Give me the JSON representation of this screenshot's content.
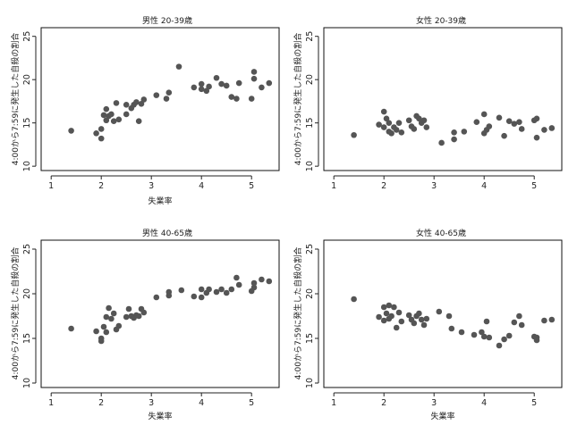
{
  "chart_data": [
    {
      "type": "scatter",
      "title": "男性 20-39歳",
      "xlabel": "失業率",
      "ylabel": "4:00から7:59に発生した自殺の割合",
      "xlim": [
        0.8,
        5.55
      ],
      "ylim": [
        9.5,
        26
      ],
      "xticks": [
        1,
        2,
        3,
        4,
        5
      ],
      "yticks": [
        10,
        15,
        20,
        25
      ],
      "grid": false,
      "color": "#555555",
      "points": [
        [
          1.4,
          14.1
        ],
        [
          1.9,
          13.8
        ],
        [
          2.0,
          13.2
        ],
        [
          2.0,
          14.3
        ],
        [
          2.05,
          15.9
        ],
        [
          2.1,
          16.6
        ],
        [
          2.1,
          15.3
        ],
        [
          2.15,
          15.8
        ],
        [
          2.2,
          16.0
        ],
        [
          2.25,
          15.2
        ],
        [
          2.3,
          17.3
        ],
        [
          2.35,
          15.4
        ],
        [
          2.5,
          16.0
        ],
        [
          2.5,
          17.1
        ],
        [
          2.6,
          16.7
        ],
        [
          2.65,
          17.1
        ],
        [
          2.7,
          17.4
        ],
        [
          2.75,
          15.2
        ],
        [
          2.8,
          17.2
        ],
        [
          2.85,
          17.7
        ],
        [
          3.1,
          18.2
        ],
        [
          3.3,
          17.8
        ],
        [
          3.35,
          18.5
        ],
        [
          3.55,
          21.5
        ],
        [
          3.85,
          19.1
        ],
        [
          4.0,
          19.5
        ],
        [
          4.0,
          18.9
        ],
        [
          4.1,
          18.7
        ],
        [
          4.15,
          19.2
        ],
        [
          4.3,
          20.2
        ],
        [
          4.4,
          19.5
        ],
        [
          4.5,
          19.3
        ],
        [
          4.6,
          18.0
        ],
        [
          4.7,
          17.8
        ],
        [
          4.75,
          19.6
        ],
        [
          5.0,
          17.8
        ],
        [
          5.05,
          20.9
        ],
        [
          5.05,
          20.1
        ],
        [
          5.2,
          19.1
        ],
        [
          5.35,
          19.6
        ]
      ]
    },
    {
      "type": "scatter",
      "title": "女性 20-39歳",
      "xlabel": "",
      "ylabel": "4:00から7:59に発生した自殺の割合",
      "xlim": [
        0.8,
        5.55
      ],
      "ylim": [
        9.5,
        26
      ],
      "xticks": [
        1,
        2,
        3,
        4,
        5
      ],
      "yticks": [
        10,
        15,
        20,
        25
      ],
      "grid": false,
      "color": "#555555",
      "points": [
        [
          1.4,
          13.6
        ],
        [
          1.9,
          14.8
        ],
        [
          2.0,
          16.3
        ],
        [
          2.0,
          14.5
        ],
        [
          2.05,
          15.5
        ],
        [
          2.1,
          14.0
        ],
        [
          2.1,
          15.0
        ],
        [
          2.15,
          13.8
        ],
        [
          2.2,
          14.5
        ],
        [
          2.25,
          14.2
        ],
        [
          2.3,
          15.0
        ],
        [
          2.35,
          13.9
        ],
        [
          2.5,
          15.3
        ],
        [
          2.55,
          14.6
        ],
        [
          2.6,
          14.3
        ],
        [
          2.65,
          15.8
        ],
        [
          2.7,
          15.5
        ],
        [
          2.75,
          15.0
        ],
        [
          2.8,
          15.3
        ],
        [
          2.85,
          14.5
        ],
        [
          3.15,
          12.7
        ],
        [
          3.4,
          13.9
        ],
        [
          3.4,
          13.1
        ],
        [
          3.6,
          14.0
        ],
        [
          3.85,
          15.1
        ],
        [
          4.0,
          16.0
        ],
        [
          4.0,
          13.8
        ],
        [
          4.05,
          14.2
        ],
        [
          4.1,
          14.6
        ],
        [
          4.3,
          15.6
        ],
        [
          4.4,
          13.5
        ],
        [
          4.5,
          15.2
        ],
        [
          4.6,
          14.9
        ],
        [
          4.7,
          15.1
        ],
        [
          4.75,
          14.3
        ],
        [
          5.0,
          15.3
        ],
        [
          5.05,
          15.5
        ],
        [
          5.05,
          13.3
        ],
        [
          5.2,
          14.2
        ],
        [
          5.35,
          14.4
        ]
      ]
    },
    {
      "type": "scatter",
      "title": "男性 40-65歳",
      "xlabel": "失業率",
      "ylabel": "4:00から7:59に発生した自殺の割合",
      "xlim": [
        0.8,
        5.55
      ],
      "ylim": [
        9.5,
        26
      ],
      "xticks": [
        1,
        2,
        3,
        4,
        5
      ],
      "yticks": [
        10,
        15,
        20,
        25
      ],
      "grid": false,
      "color": "#555555",
      "points": [
        [
          1.4,
          16.1
        ],
        [
          1.9,
          15.8
        ],
        [
          2.0,
          15.0
        ],
        [
          2.0,
          14.7
        ],
        [
          2.05,
          16.3
        ],
        [
          2.1,
          17.4
        ],
        [
          2.1,
          15.7
        ],
        [
          2.15,
          18.4
        ],
        [
          2.2,
          17.2
        ],
        [
          2.25,
          17.8
        ],
        [
          2.3,
          16.0
        ],
        [
          2.35,
          16.4
        ],
        [
          2.5,
          17.4
        ],
        [
          2.55,
          18.3
        ],
        [
          2.6,
          17.5
        ],
        [
          2.65,
          17.3
        ],
        [
          2.7,
          17.6
        ],
        [
          2.75,
          17.5
        ],
        [
          2.8,
          18.3
        ],
        [
          2.85,
          17.9
        ],
        [
          3.1,
          19.6
        ],
        [
          3.35,
          19.8
        ],
        [
          3.35,
          20.2
        ],
        [
          3.6,
          20.4
        ],
        [
          3.85,
          19.7
        ],
        [
          4.0,
          19.6
        ],
        [
          4.0,
          20.5
        ],
        [
          4.1,
          20.1
        ],
        [
          4.15,
          20.5
        ],
        [
          4.3,
          20.2
        ],
        [
          4.4,
          20.5
        ],
        [
          4.5,
          20.1
        ],
        [
          4.6,
          20.5
        ],
        [
          4.7,
          21.8
        ],
        [
          4.75,
          21.0
        ],
        [
          5.0,
          20.3
        ],
        [
          5.05,
          20.7
        ],
        [
          5.05,
          21.2
        ],
        [
          5.2,
          21.6
        ],
        [
          5.35,
          21.4
        ]
      ]
    },
    {
      "type": "scatter",
      "title": "女性 40-65歳",
      "xlabel": "失業率",
      "ylabel": "4:00から7:59に発生した自殺の割合",
      "xlim": [
        0.8,
        5.55
      ],
      "ylim": [
        9.5,
        26
      ],
      "xticks": [
        1,
        2,
        3,
        4,
        5
      ],
      "yticks": [
        10,
        15,
        20,
        25
      ],
      "grid": false,
      "color": "#555555",
      "points": [
        [
          1.4,
          19.4
        ],
        [
          1.9,
          17.4
        ],
        [
          2.0,
          18.5
        ],
        [
          2.0,
          17.0
        ],
        [
          2.05,
          17.8
        ],
        [
          2.1,
          18.7
        ],
        [
          2.1,
          17.2
        ],
        [
          2.15,
          17.5
        ],
        [
          2.2,
          18.5
        ],
        [
          2.25,
          16.2
        ],
        [
          2.3,
          17.9
        ],
        [
          2.35,
          16.9
        ],
        [
          2.5,
          17.6
        ],
        [
          2.55,
          17.1
        ],
        [
          2.6,
          16.7
        ],
        [
          2.65,
          17.5
        ],
        [
          2.7,
          17.8
        ],
        [
          2.75,
          17.1
        ],
        [
          2.8,
          16.5
        ],
        [
          2.85,
          17.2
        ],
        [
          3.1,
          18.0
        ],
        [
          3.3,
          17.5
        ],
        [
          3.35,
          16.1
        ],
        [
          3.55,
          15.7
        ],
        [
          3.8,
          15.4
        ],
        [
          3.95,
          15.7
        ],
        [
          4.0,
          15.2
        ],
        [
          4.05,
          16.9
        ],
        [
          4.1,
          15.1
        ],
        [
          4.3,
          14.2
        ],
        [
          4.4,
          14.9
        ],
        [
          4.5,
          15.3
        ],
        [
          4.6,
          16.8
        ],
        [
          4.7,
          17.5
        ],
        [
          4.75,
          16.5
        ],
        [
          5.0,
          15.2
        ],
        [
          5.05,
          15.1
        ],
        [
          5.05,
          14.8
        ],
        [
          5.2,
          17.0
        ],
        [
          5.35,
          17.1
        ]
      ]
    }
  ]
}
